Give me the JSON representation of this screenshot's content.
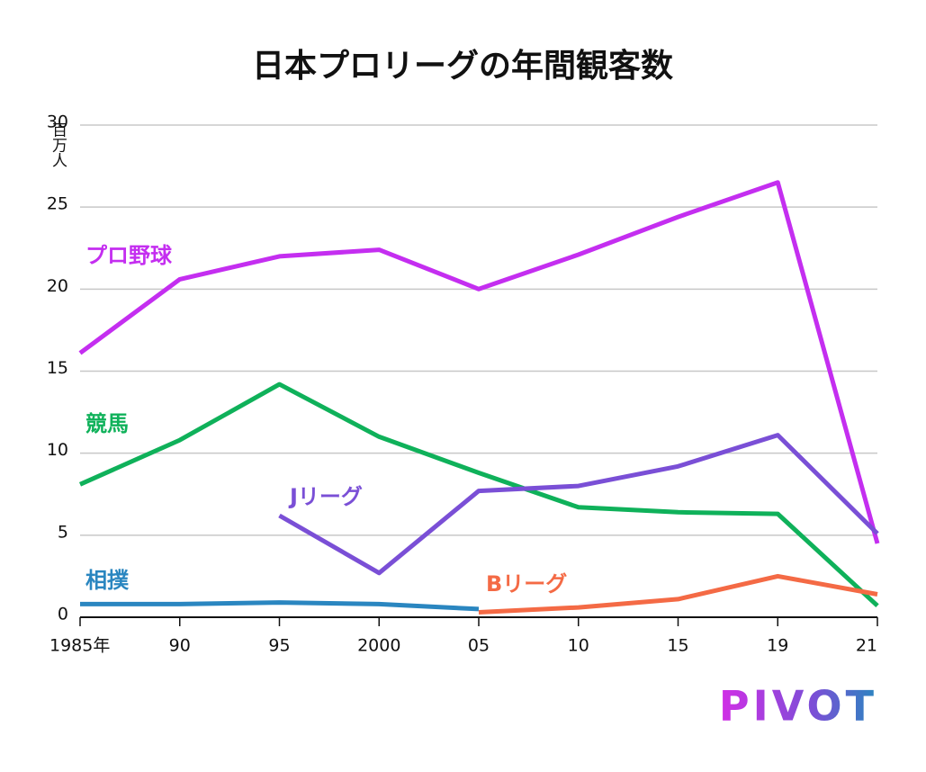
{
  "chart_data": {
    "type": "line",
    "title": "日本プロリーグの年間観客数",
    "y_unit": "百万人",
    "categories": [
      "1985年",
      "90",
      "95",
      "2000",
      "05",
      "10",
      "15",
      "19",
      "21"
    ],
    "series": [
      {
        "name": "プロ野球",
        "color": "#c42ef0",
        "values": [
          16.1,
          20.6,
          22.0,
          22.4,
          20.0,
          22.1,
          24.4,
          26.5,
          4.5
        ]
      },
      {
        "name": "競馬",
        "color": "#0fb15a",
        "values": [
          8.1,
          10.8,
          14.2,
          11.0,
          8.8,
          6.7,
          6.4,
          6.3,
          0.7
        ]
      },
      {
        "name": "Jリーグ",
        "color": "#7a4fd6",
        "values": [
          null,
          null,
          6.2,
          2.7,
          7.7,
          8.0,
          9.2,
          11.1,
          5.1
        ]
      },
      {
        "name": "相撲",
        "color": "#2a86c0",
        "values": [
          0.8,
          0.8,
          0.9,
          0.8,
          0.5,
          null,
          null,
          null,
          null
        ]
      },
      {
        "name": "Bリーグ",
        "color": "#f46a45",
        "values": [
          null,
          null,
          null,
          null,
          0.3,
          0.6,
          1.1,
          2.5,
          1.4
        ]
      }
    ],
    "ylim": [
      0,
      30
    ],
    "yticks": [
      0,
      5,
      10,
      15,
      20,
      25,
      30
    ],
    "grid": true,
    "logo": "PIVOT"
  }
}
